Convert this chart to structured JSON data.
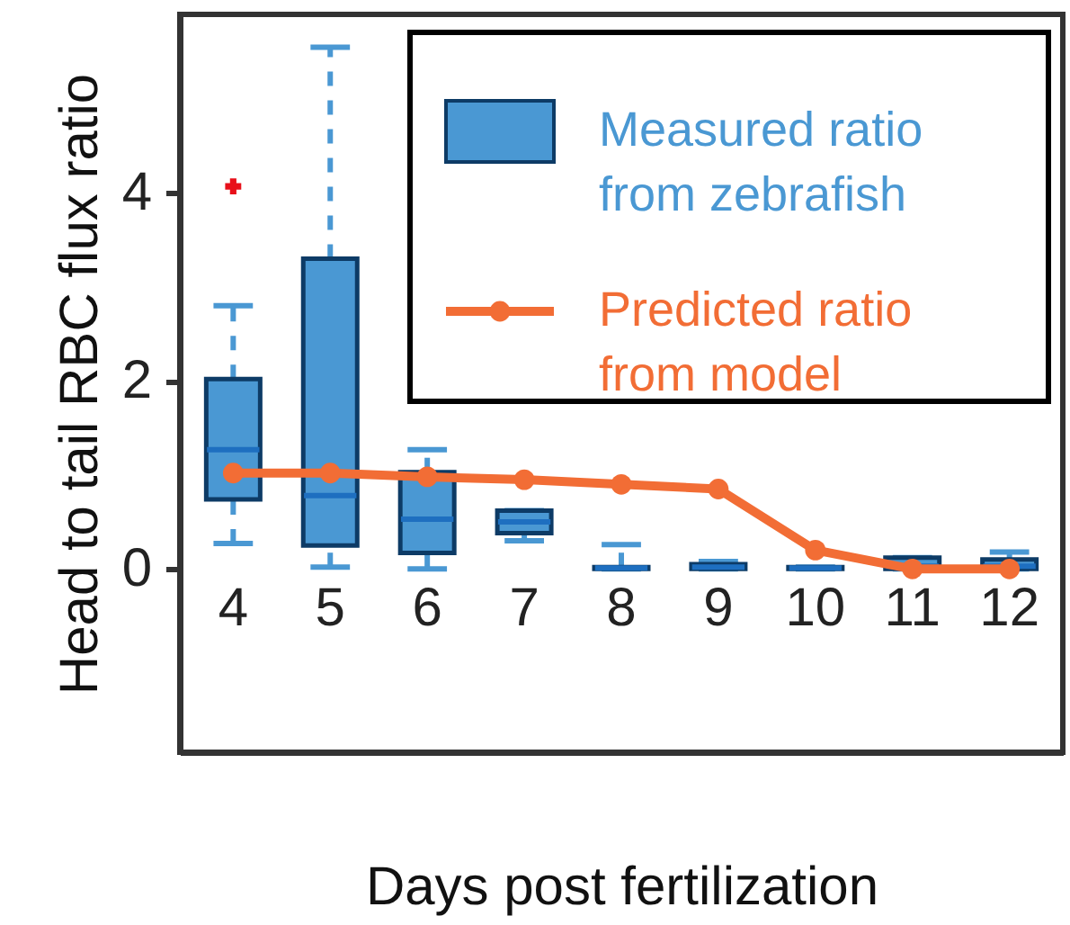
{
  "chart_data": {
    "type": "box",
    "xlabel": "Days post fertilization",
    "ylabel": "Head to tail RBC flux ratio",
    "categories": [
      "4",
      "5",
      "6",
      "7",
      "8",
      "9",
      "10",
      "11",
      "12"
    ],
    "ylim": [
      -1.95,
      5.9
    ],
    "yticks": [
      0,
      2,
      4
    ],
    "grid": false,
    "legend": "top right",
    "series": [
      {
        "name": "Measured ratio\nfrom zebrafish",
        "type": "box",
        "color": "#4a98d3",
        "boxes": [
          {
            "low": 0.27,
            "q1": 0.74,
            "median": 1.27,
            "q3": 2.02,
            "high": 2.8,
            "outliers": [
              4.07
            ]
          },
          {
            "low": 0.02,
            "q1": 0.25,
            "median": 0.78,
            "q3": 3.3,
            "high": 5.55
          },
          {
            "low": 0.0,
            "q1": 0.17,
            "median": 0.53,
            "q3": 1.03,
            "high": 1.27
          },
          {
            "low": 0.3,
            "q1": 0.38,
            "median": 0.5,
            "q3": 0.62,
            "high": 0.62
          },
          {
            "low": 0.0,
            "q1": 0.0,
            "median": 0.01,
            "q3": 0.02,
            "high": 0.26
          },
          {
            "low": 0.0,
            "q1": 0.0,
            "median": 0.02,
            "q3": 0.05,
            "high": 0.08
          },
          {
            "low": 0.0,
            "q1": 0.0,
            "median": 0.01,
            "q3": 0.02,
            "high": 0.02
          },
          {
            "low": 0.0,
            "q1": 0.0,
            "median": 0.03,
            "q3": 0.12,
            "high": 0.12
          },
          {
            "low": 0.0,
            "q1": 0.0,
            "median": 0.03,
            "q3": 0.1,
            "high": 0.18
          }
        ]
      },
      {
        "name": "Predicted ratio\nfrom model",
        "type": "line",
        "color": "#f26d35",
        "marker": "circle",
        "line_style": "solid",
        "x": [
          "4",
          "5",
          "6",
          "7",
          "8",
          "9",
          "10",
          "11",
          "12"
        ],
        "values": [
          1.02,
          1.02,
          0.98,
          0.95,
          0.9,
          0.85,
          0.2,
          0.0,
          0.0
        ]
      }
    ]
  }
}
